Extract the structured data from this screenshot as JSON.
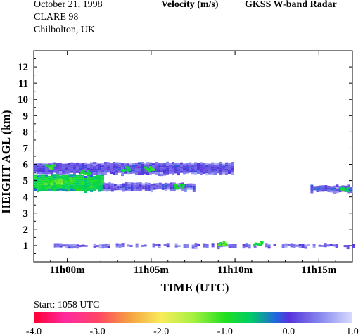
{
  "header": {
    "date": "October  21, 1998",
    "campaign": "CLARE 98",
    "site": "Chilbolton, UK",
    "quantity": "Velocity (m/s)",
    "instrument": "GKSS  W-band Radar"
  },
  "footer": {
    "start_label": "Start: 1058 UTC"
  },
  "colorbar": {
    "ticks": [
      "-4.0",
      "-3.0",
      "-2.0",
      "-1.0",
      "0.0",
      "1.0"
    ],
    "range": [
      -4.0,
      1.0
    ],
    "stops": [
      {
        "v": -4.0,
        "color": "#ff0033"
      },
      {
        "v": -3.5,
        "color": "#ff2aa0"
      },
      {
        "v": -3.0,
        "color": "#ff4466"
      },
      {
        "v": -2.5,
        "color": "#f5a040"
      },
      {
        "v": -2.0,
        "color": "#f8ec5a"
      },
      {
        "v": -1.5,
        "color": "#a8f040"
      },
      {
        "v": -1.0,
        "color": "#20e020"
      },
      {
        "v": -0.6,
        "color": "#00cc66"
      },
      {
        "v": -0.2,
        "color": "#2266dd"
      },
      {
        "v": 0.0,
        "color": "#5533dd"
      },
      {
        "v": 0.5,
        "color": "#8888ee"
      },
      {
        "v": 1.0,
        "color": "#d8dcff"
      }
    ]
  },
  "chart_data": {
    "type": "heatmap",
    "title": "Velocity (m/s)",
    "xlabel": "TIME (UTC)",
    "ylabel": "HEIGHT AGL (km)",
    "x_tick_labels": [
      "11h00m",
      "11h05m",
      "11h10m",
      "11h15m"
    ],
    "x_tick_minutes": [
      60,
      65,
      70,
      75
    ],
    "xlim_minutes": [
      58,
      77
    ],
    "y_ticks": [
      1,
      2,
      3,
      4,
      5,
      6,
      7,
      8,
      9,
      10,
      11,
      12
    ],
    "ylim": [
      0,
      13
    ],
    "echo_layers": [
      {
        "t_start": 58.0,
        "t_end": 69.9,
        "z_bottom": 5.45,
        "z_top": 6.1,
        "velocity_typical": 0.1
      },
      {
        "t_start": 58.0,
        "t_end": 62.1,
        "z_bottom": 4.4,
        "z_top": 5.35,
        "velocity_typical": -0.8
      },
      {
        "t_start": 62.1,
        "t_end": 67.5,
        "z_bottom": 4.45,
        "z_top": 4.85,
        "velocity_typical": 0.1
      },
      {
        "t_start": 74.5,
        "t_end": 77.0,
        "z_bottom": 4.35,
        "z_top": 4.7,
        "velocity_typical": 0.0
      },
      {
        "t_start": 59.2,
        "t_end": 77.0,
        "z_bottom": 0.95,
        "z_top": 1.1,
        "velocity_typical": 0.1
      }
    ],
    "highlights": [
      {
        "t": 58.8,
        "z": 4.95,
        "velocity": -1.1
      },
      {
        "t": 59.4,
        "z": 5.0,
        "velocity": -1.3
      },
      {
        "t": 60.3,
        "z": 5.1,
        "velocity": -1.0
      },
      {
        "t": 58.9,
        "z": 5.9,
        "velocity": -1.0
      },
      {
        "t": 61.0,
        "z": 5.55,
        "velocity": -0.9
      },
      {
        "t": 63.4,
        "z": 5.75,
        "velocity": -0.8
      },
      {
        "t": 64.8,
        "z": 5.8,
        "velocity": -0.9
      },
      {
        "t": 66.6,
        "z": 4.7,
        "velocity": -0.8
      },
      {
        "t": 69.2,
        "z": 1.2,
        "velocity": -1.1
      },
      {
        "t": 71.3,
        "z": 1.2,
        "velocity": -0.9
      },
      {
        "t": 76.5,
        "z": 4.5,
        "velocity": -0.8
      }
    ]
  }
}
